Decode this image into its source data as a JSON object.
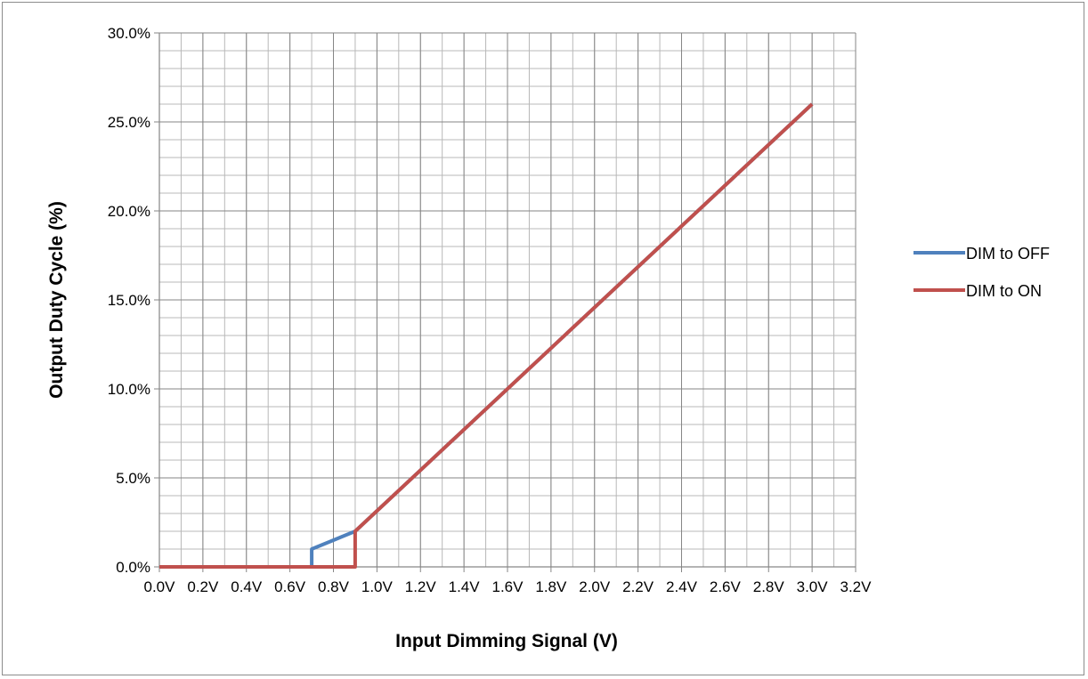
{
  "chart_data": {
    "type": "line",
    "xlabel": "Input Dimming Signal (V)",
    "ylabel": "Output Duty Cycle (%)",
    "xlim": [
      0.0,
      3.2
    ],
    "ylim": [
      0.0,
      30.0
    ],
    "x_major_step": 0.2,
    "x_minor_step": 0.1,
    "y_major_step": 5.0,
    "y_minor_step": 1.0,
    "x_tick_labels": [
      "0.0V",
      "0.2V",
      "0.4V",
      "0.6V",
      "0.8V",
      "1.0V",
      "1.2V",
      "1.4V",
      "1.6V",
      "1.8V",
      "2.0V",
      "2.2V",
      "2.4V",
      "2.6V",
      "2.8V",
      "3.0V",
      "3.2V"
    ],
    "y_tick_labels": [
      "0.0%",
      "5.0%",
      "10.0%",
      "15.0%",
      "20.0%",
      "25.0%",
      "30.0%"
    ],
    "grid": true,
    "legend_position": "right",
    "series": [
      {
        "name": "DIM to OFF",
        "color": "#4f81bd",
        "points": [
          [
            0.0,
            0.0
          ],
          [
            0.7,
            0.0
          ],
          [
            0.7,
            1.0
          ],
          [
            0.9,
            2.0
          ],
          [
            3.0,
            26.0
          ]
        ]
      },
      {
        "name": "DIM to ON",
        "color": "#c0504d",
        "points": [
          [
            0.0,
            0.0
          ],
          [
            0.9,
            0.0
          ],
          [
            0.9,
            2.0
          ],
          [
            3.0,
            26.0
          ]
        ]
      }
    ]
  }
}
